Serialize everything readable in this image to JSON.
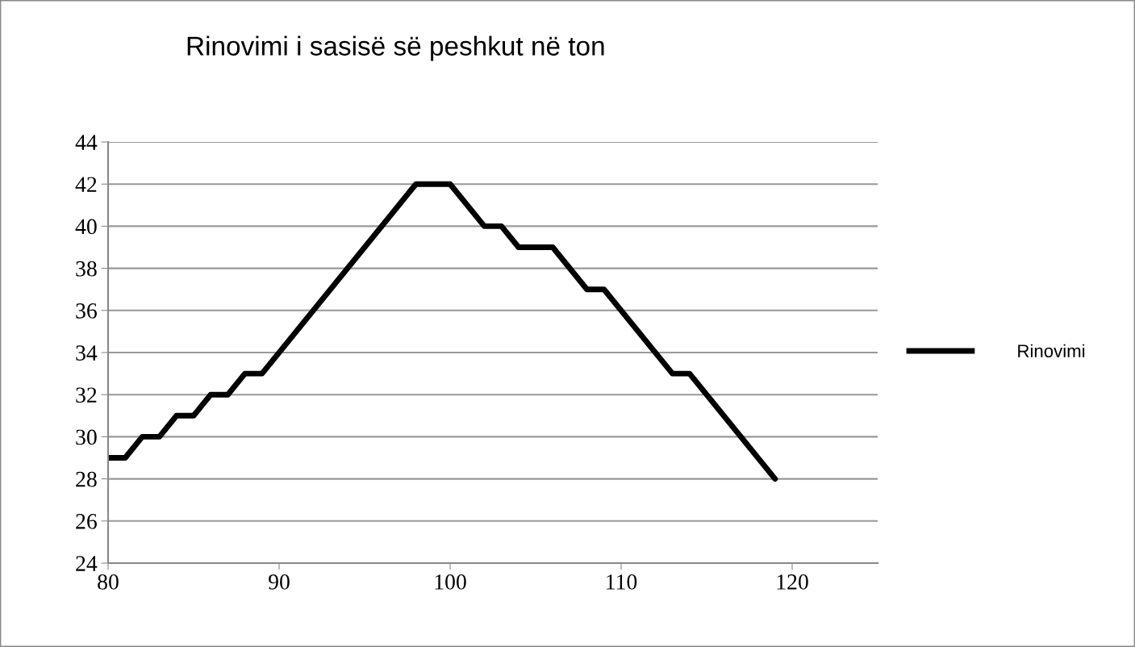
{
  "chart_data": {
    "type": "line",
    "title": "Rinovimi i sasisë së peshkut në ton",
    "x": [
      80,
      81,
      82,
      83,
      84,
      85,
      86,
      87,
      88,
      89,
      98,
      99,
      100,
      102,
      103,
      104,
      106,
      108,
      109,
      113,
      114,
      119
    ],
    "series": [
      {
        "name": "Rinovimi",
        "color": "#000000",
        "values": [
          29,
          29,
          30,
          30,
          31,
          31,
          32,
          32,
          33,
          33,
          42,
          42,
          42,
          40,
          40,
          39,
          39,
          37,
          37,
          33,
          33,
          28
        ]
      }
    ],
    "xlim": [
      80,
      125
    ],
    "xticks": [
      80,
      90,
      100,
      110,
      120
    ],
    "ylim": [
      24,
      44
    ],
    "yticks": [
      24,
      26,
      28,
      30,
      32,
      34,
      36,
      38,
      40,
      42,
      44
    ],
    "grid": "y",
    "legend": "right",
    "marker": "none",
    "line_style": "solid"
  }
}
